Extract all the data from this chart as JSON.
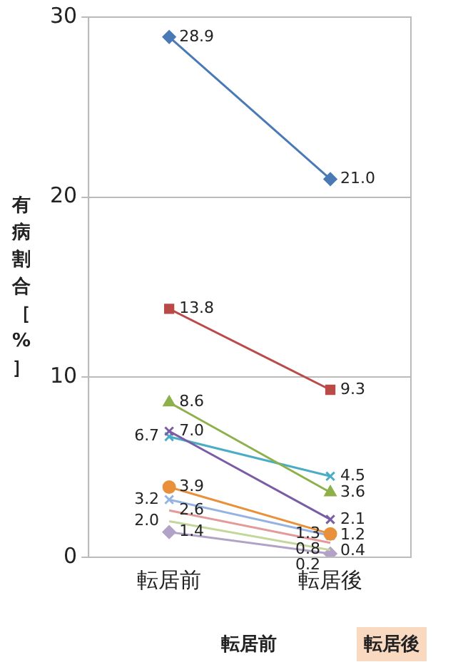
{
  "chart_data": {
    "type": "line",
    "ylabel": "有病割合［%］",
    "categories": [
      "転居前",
      "転居後"
    ],
    "ylim": [
      0,
      30
    ],
    "yticks": [
      0,
      10,
      20,
      30
    ],
    "grid": "y",
    "legend": false,
    "series": [
      {
        "color": "#4a7ab5",
        "marker": "diamond",
        "values": [
          28.9,
          21.0
        ],
        "value_labels": [
          "28.9",
          "21.0"
        ]
      },
      {
        "color": "#b94a48",
        "marker": "square",
        "values": [
          13.8,
          9.3
        ],
        "value_labels": [
          "13.8",
          "9.3"
        ]
      },
      {
        "color": "#8db04a",
        "marker": "triangle",
        "values": [
          8.6,
          3.6
        ],
        "value_labels": [
          "8.6",
          "3.6"
        ]
      },
      {
        "color": "#7a5ba6",
        "marker": "cross",
        "values": [
          7.0,
          2.1
        ],
        "value_labels": [
          "7.0",
          "2.1"
        ]
      },
      {
        "color": "#4bacc6",
        "marker": "cross",
        "values": [
          6.7,
          4.5
        ],
        "value_labels": [
          "6.7",
          "4.5"
        ]
      },
      {
        "color": "#e8913a",
        "marker": "circle",
        "values": [
          3.9,
          1.3
        ],
        "value_labels": [
          "3.9",
          "1.3"
        ]
      },
      {
        "color": "#95b3e0",
        "marker": "cross",
        "values": [
          3.2,
          1.2
        ],
        "value_labels": [
          "3.2",
          "1.2"
        ]
      },
      {
        "color": "#e49a9a",
        "marker": "none",
        "values": [
          2.6,
          0.8
        ],
        "value_labels": [
          "2.6",
          "0.8"
        ]
      },
      {
        "color": "#c3d69b",
        "marker": "none",
        "values": [
          2.0,
          0.4
        ],
        "value_labels": [
          "2.0",
          "0.4"
        ]
      },
      {
        "color": "#b3a2c7",
        "marker": "diamond",
        "values": [
          1.4,
          0.2
        ],
        "value_labels": [
          "1.4",
          "0.2"
        ]
      }
    ],
    "annotations": [
      "転居前",
      "転居後"
    ]
  }
}
